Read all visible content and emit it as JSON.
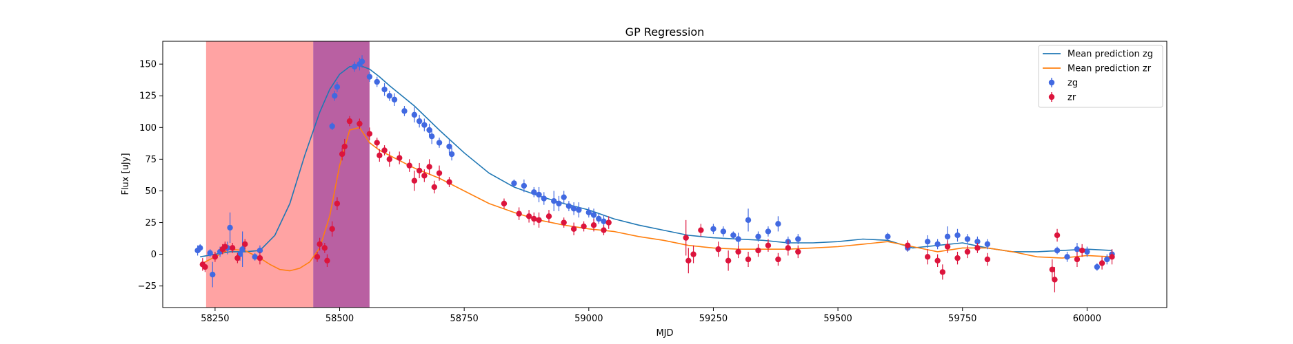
{
  "chart_data": {
    "type": "scatter",
    "title": "GP Regression",
    "xlabel": "MJD",
    "ylabel": "Flux [uJy]",
    "xlim": [
      58145,
      60160
    ],
    "ylim": [
      -42,
      168
    ],
    "xticks": [
      58250,
      58500,
      58750,
      59000,
      59250,
      59500,
      59750,
      60000
    ],
    "yticks": [
      -25,
      0,
      25,
      50,
      75,
      100,
      125,
      150
    ],
    "legend_position": "upper right",
    "shaded_regions": [
      {
        "x0": 58232,
        "x1": 58447,
        "color": "#ff6666",
        "alpha": 0.6
      },
      {
        "x0": 58447,
        "x1": 58560,
        "color": "#9b1d7a",
        "alpha": 0.7
      }
    ],
    "legend": [
      {
        "label": "Mean prediction zg",
        "kind": "line",
        "color": "#1f77b4"
      },
      {
        "label": "Mean prediction zr",
        "kind": "line",
        "color": "#ff7f0e"
      },
      {
        "label": "zg",
        "kind": "errorbar",
        "color": "#4169e1"
      },
      {
        "label": "zr",
        "kind": "errorbar",
        "color": "#dc143c"
      }
    ],
    "series": [
      {
        "name": "Mean prediction zg",
        "kind": "line",
        "color": "#1f77b4",
        "x": [
          58220,
          58250,
          58280,
          58310,
          58340,
          58370,
          58400,
          58430,
          58460,
          58480,
          58500,
          58520,
          58540,
          58560,
          58580,
          58600,
          58650,
          58700,
          58750,
          58800,
          58850,
          58900,
          58950,
          59000,
          59050,
          59100,
          59150,
          59200,
          59250,
          59300,
          59350,
          59400,
          59450,
          59500,
          59550,
          59600,
          59650,
          59700,
          59750,
          59800,
          59850,
          59900,
          59950,
          60000,
          60050
        ],
        "y": [
          -2,
          0,
          2,
          2,
          3,
          15,
          40,
          78,
          112,
          130,
          142,
          148,
          149,
          146,
          140,
          133,
          117,
          98,
          80,
          64,
          53,
          46,
          40,
          35,
          28,
          23,
          19,
          15,
          13,
          12,
          11,
          9,
          9,
          10,
          12,
          11,
          5,
          7,
          9,
          5,
          2,
          2,
          3,
          4,
          3
        ]
      },
      {
        "name": "Mean prediction zr",
        "kind": "line",
        "color": "#ff7f0e",
        "x": [
          58220,
          58250,
          58280,
          58310,
          58340,
          58360,
          58380,
          58400,
          58420,
          58440,
          58460,
          58480,
          58500,
          58520,
          58540,
          58560,
          58580,
          58600,
          58650,
          58700,
          58750,
          58800,
          58850,
          58900,
          58950,
          59000,
          59050,
          59100,
          59150,
          59200,
          59250,
          59300,
          59350,
          59400,
          59450,
          59500,
          59550,
          59600,
          59650,
          59700,
          59750,
          59800,
          59850,
          59900,
          59950,
          60000,
          60050
        ],
        "y": [
          -8,
          -2,
          4,
          3,
          -3,
          -8,
          -12,
          -13,
          -11,
          -6,
          5,
          30,
          70,
          98,
          100,
          88,
          82,
          78,
          68,
          60,
          50,
          40,
          33,
          27,
          23,
          20,
          18,
          14,
          11,
          7,
          5,
          4,
          4,
          4,
          5,
          6,
          8,
          10,
          6,
          2,
          5,
          5,
          2,
          -2,
          -3,
          -1,
          -2
        ]
      },
      {
        "name": "zg",
        "kind": "errorbar",
        "color": "#4169e1",
        "x": [
          58215,
          58220,
          58240,
          58245,
          58260,
          58275,
          58280,
          58300,
          58305,
          58330,
          58340,
          58485,
          58490,
          58495,
          58530,
          58540,
          58545,
          58560,
          58575,
          58590,
          58600,
          58610,
          58630,
          58650,
          58660,
          58670,
          58680,
          58685,
          58700,
          58720,
          58725,
          58850,
          58870,
          58890,
          58900,
          58910,
          58930,
          58940,
          58950,
          58960,
          58970,
          58980,
          59000,
          59010,
          59020,
          59030,
          59250,
          59270,
          59290,
          59300,
          59320,
          59340,
          59360,
          59380,
          59400,
          59420,
          59600,
          59640,
          59680,
          59700,
          59720,
          59740,
          59760,
          59780,
          59800,
          59940,
          59960,
          59980,
          60000,
          60020,
          60040,
          60050
        ],
        "y": [
          3,
          5,
          1,
          -16,
          2,
          5,
          21,
          0,
          4,
          -2,
          3,
          101,
          125,
          132,
          148,
          150,
          152,
          140,
          136,
          130,
          125,
          122,
          113,
          110,
          105,
          102,
          98,
          93,
          88,
          85,
          79,
          56,
          54,
          49,
          47,
          44,
          42,
          40,
          45,
          38,
          36,
          35,
          33,
          31,
          28,
          26,
          20,
          18,
          15,
          12,
          27,
          14,
          18,
          24,
          10,
          12,
          14,
          5,
          10,
          8,
          14,
          15,
          12,
          10,
          8,
          3,
          -2,
          4,
          2,
          -10,
          -4,
          0
        ],
        "yerr": [
          4,
          3,
          3,
          10,
          4,
          5,
          12,
          5,
          14,
          3,
          4,
          3,
          4,
          4,
          4,
          5,
          5,
          4,
          4,
          5,
          4,
          5,
          4,
          6,
          5,
          5,
          5,
          6,
          4,
          5,
          5,
          3,
          5,
          4,
          6,
          5,
          8,
          6,
          5,
          4,
          5,
          6,
          4,
          5,
          4,
          5,
          4,
          4,
          3,
          5,
          9,
          4,
          4,
          6,
          4,
          4,
          3,
          3,
          5,
          4,
          8,
          5,
          4,
          4,
          4,
          3,
          4,
          5,
          4,
          3,
          4,
          4
        ]
      },
      {
        "name": "zr",
        "kind": "errorbar",
        "color": "#dc143c",
        "x": [
          58225,
          58230,
          58250,
          58265,
          58270,
          58285,
          58295,
          58310,
          58340,
          58455,
          58460,
          58470,
          58475,
          58485,
          58495,
          58505,
          58510,
          58520,
          58540,
          58560,
          58575,
          58580,
          58590,
          58600,
          58620,
          58640,
          58650,
          58660,
          58670,
          58680,
          58690,
          58700,
          58720,
          58830,
          58860,
          58880,
          58890,
          58900,
          58920,
          58950,
          58970,
          58990,
          59010,
          59030,
          59040,
          59195,
          59200,
          59210,
          59225,
          59260,
          59280,
          59300,
          59320,
          59340,
          59360,
          59380,
          59400,
          59420,
          59640,
          59680,
          59700,
          59710,
          59720,
          59740,
          59760,
          59780,
          59800,
          59930,
          59935,
          59940,
          59980,
          59990,
          60030,
          60050
        ],
        "y": [
          -8,
          -10,
          -2,
          4,
          6,
          5,
          -3,
          8,
          -3,
          -2,
          8,
          5,
          -5,
          20,
          40,
          79,
          85,
          105,
          103,
          95,
          88,
          78,
          82,
          75,
          76,
          70,
          58,
          66,
          62,
          69,
          53,
          64,
          57,
          40,
          32,
          30,
          28,
          27,
          30,
          25,
          20,
          22,
          23,
          19,
          25,
          13,
          -5,
          0,
          19,
          4,
          -5,
          2,
          -4,
          3,
          7,
          -4,
          5,
          2,
          7,
          -2,
          -5,
          -14,
          6,
          -3,
          2,
          5,
          -4,
          -12,
          -20,
          15,
          -4,
          3,
          -7,
          -2
        ],
        "yerr": [
          5,
          4,
          4,
          4,
          4,
          4,
          4,
          4,
          5,
          4,
          5,
          4,
          5,
          6,
          5,
          5,
          6,
          4,
          4,
          5,
          4,
          5,
          4,
          6,
          5,
          5,
          8,
          6,
          5,
          6,
          5,
          6,
          4,
          4,
          5,
          5,
          5,
          6,
          5,
          4,
          5,
          4,
          5,
          4,
          5,
          14,
          10,
          7,
          5,
          6,
          8,
          5,
          6,
          5,
          5,
          5,
          6,
          5,
          4,
          6,
          5,
          6,
          5,
          5,
          5,
          4,
          5,
          8,
          10,
          5,
          6,
          5,
          5,
          6
        ]
      }
    ]
  }
}
